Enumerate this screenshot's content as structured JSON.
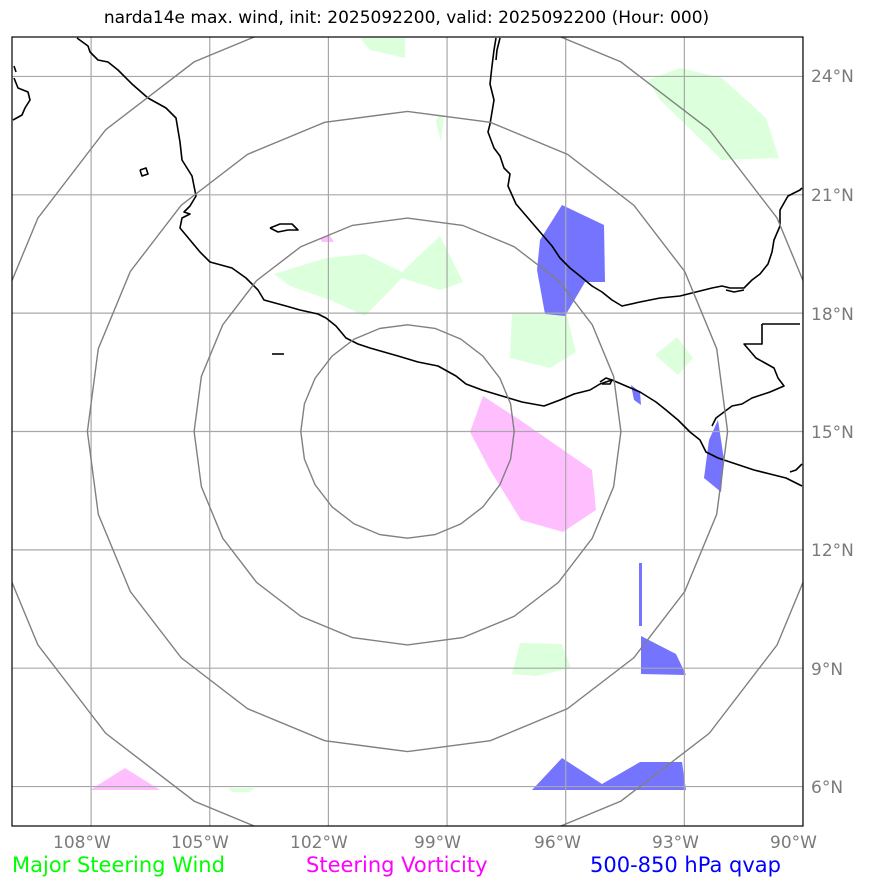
{
  "title": "narda14e max. wind, init: 2025092200, valid: 2025092200 (Hour: 000)",
  "axes": {
    "lon_labels": [
      "108°W",
      "105°W",
      "102°W",
      "99°W",
      "96°W",
      "93°W",
      "90°W"
    ],
    "lat_labels": [
      "24°N",
      "21°N",
      "18°N",
      "15°N",
      "12°N",
      "9°N",
      "6°N"
    ],
    "lon_range": [
      -110,
      -90
    ],
    "lat_range": [
      5,
      25
    ]
  },
  "storm_center": {
    "lon": -100.0,
    "lat": 15.0
  },
  "range_rings_km": [
    300,
    600,
    900,
    1200
  ],
  "legend": [
    {
      "label": "Major Steering Wind",
      "color": "#00ff00"
    },
    {
      "label": "Steering Vorticity",
      "color": "#ff00ff"
    },
    {
      "label": "500-850 hPa qvap",
      "color": "#0000ff"
    }
  ],
  "colors": {
    "steering_wind_fill": "#dcffdc",
    "vorticity_fill": "#ffbfff",
    "qvap_fill": "#7474ff",
    "grid": "#a8a8a8",
    "ring": "#808080",
    "coast": "#000000"
  }
}
